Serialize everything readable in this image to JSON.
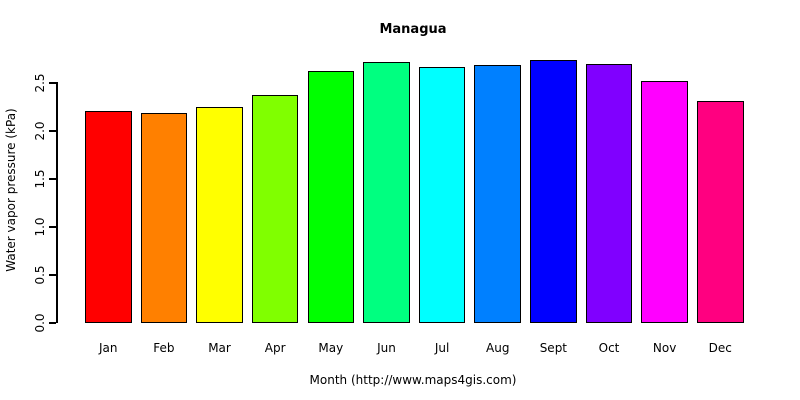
{
  "chart_data": {
    "type": "bar",
    "title": "Managua",
    "categories": [
      "Jan",
      "Feb",
      "Mar",
      "Apr",
      "May",
      "Jun",
      "Jul",
      "Aug",
      "Sept",
      "Oct",
      "Nov",
      "Dec"
    ],
    "values": [
      2.21,
      2.19,
      2.25,
      2.38,
      2.62,
      2.72,
      2.67,
      2.69,
      2.74,
      2.7,
      2.52,
      2.31
    ],
    "bar_colors": [
      "#FF0000",
      "#FF8000",
      "#FFFF00",
      "#80FF00",
      "#00FF00",
      "#00FF80",
      "#00FFFF",
      "#0080FF",
      "#0000FF",
      "#8000FF",
      "#FF00FF",
      "#FF0080"
    ],
    "bar_border_color": "#000000",
    "title_text": "Managua",
    "xlabel": "Month (http://www.maps4gis.com)",
    "ylabel": "Water vapor pressure (kPa)",
    "ylim": [
      0,
      2.5
    ],
    "yticks": [
      0,
      0.5,
      1,
      1.5,
      2,
      2.5
    ],
    "ytick_labels": [
      "0.0",
      "0.5",
      "1.0",
      "1.5",
      "2.0",
      "2.5"
    ],
    "grid": false,
    "legend": "none",
    "background_color": "#FFFFFF",
    "text_color": "#000000"
  }
}
